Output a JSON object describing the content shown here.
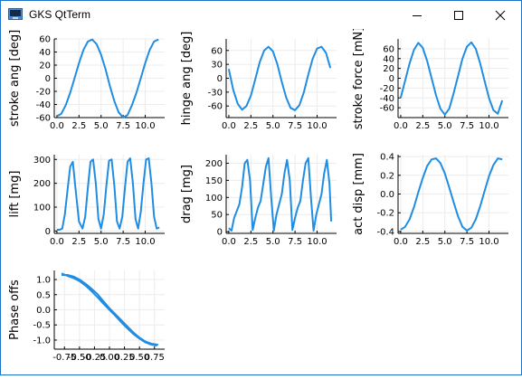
{
  "window": {
    "title": "GKS QtTerm",
    "controls": {
      "minimize_icon": "minimize-icon",
      "maximize_icon": "maximize-icon",
      "close_icon": "close-icon"
    }
  },
  "colors": {
    "line": "#1f8de3",
    "grid": "#ececec",
    "axis": "#000000",
    "titlebar_border": "#1c74c9"
  },
  "chart_data": [
    {
      "type": "line",
      "ylabel": "stroke ang [deg]",
      "xlim": [
        -0.3,
        12.2
      ],
      "ylim": [
        -60,
        60
      ],
      "xticks": [
        0,
        2.5,
        5,
        7.5,
        10
      ],
      "xtick_labels": [
        "0.0",
        "2.5",
        "5.0",
        "7.5",
        "10.0"
      ],
      "yticks": [
        -60,
        -40,
        -20,
        0,
        20,
        40,
        60
      ],
      "ytick_labels": [
        "-60",
        "-40",
        "-20",
        "0",
        "20",
        "40",
        "60"
      ],
      "x": [
        0,
        0.5,
        1,
        1.5,
        2,
        2.5,
        3,
        3.5,
        4,
        4.5,
        5,
        5.5,
        6,
        6.5,
        7,
        7.5,
        8,
        8.5,
        9,
        9.5,
        10,
        10.5,
        11,
        11.5
      ],
      "y": [
        -58,
        -54,
        -41,
        -22,
        0,
        23,
        43,
        56,
        59,
        52,
        36,
        14,
        -12,
        -35,
        -52,
        -60,
        -56,
        -41,
        -22,
        0,
        23,
        43,
        56,
        59
      ]
    },
    {
      "type": "line",
      "ylabel": "hinge ang [deg]",
      "xlim": [
        -0.3,
        12.2
      ],
      "ylim": [
        -85,
        85
      ],
      "xticks": [
        0,
        2.5,
        5,
        7.5,
        10
      ],
      "xtick_labels": [
        "0.0",
        "2.5",
        "5.0",
        "7.5",
        "10.0"
      ],
      "yticks": [
        -60,
        -30,
        0,
        30,
        60
      ],
      "ytick_labels": [
        "-60",
        "-30",
        "0",
        "30",
        "60"
      ],
      "x": [
        0,
        0.5,
        1,
        1.5,
        2,
        2.5,
        3,
        3.5,
        4,
        4.5,
        5,
        5.5,
        6,
        6.5,
        7,
        7.5,
        8,
        8.5,
        9,
        9.5,
        10,
        10.5,
        11,
        11.5
      ],
      "y": [
        20,
        -25,
        -55,
        -68,
        -60,
        -38,
        -2,
        35,
        60,
        68,
        58,
        30,
        -8,
        -42,
        -64,
        -69,
        -58,
        -30,
        8,
        42,
        64,
        68,
        55,
        22
      ]
    },
    {
      "type": "line",
      "ylabel": "stroke force [mN]",
      "xlim": [
        -0.3,
        12.2
      ],
      "ylim": [
        -80,
        80
      ],
      "xticks": [
        0,
        2.5,
        5,
        7.5,
        10
      ],
      "xtick_labels": [
        "0.0",
        "2.5",
        "5.0",
        "7.5",
        "10.0"
      ],
      "yticks": [
        -60,
        -40,
        -20,
        0,
        20,
        40,
        60
      ],
      "ytick_labels": [
        "-60",
        "-40",
        "-20",
        "0",
        "20",
        "40",
        "60"
      ],
      "x": [
        0,
        0.5,
        1,
        1.5,
        2,
        2.5,
        3,
        3.5,
        4,
        4.5,
        5,
        5.5,
        6,
        6.5,
        7,
        7.5,
        8,
        8.5,
        9,
        9.5,
        10,
        10.5,
        11,
        11.5
      ],
      "y": [
        -40,
        -5,
        30,
        58,
        72,
        62,
        35,
        0,
        -35,
        -62,
        -74,
        -62,
        -30,
        5,
        40,
        64,
        73,
        60,
        30,
        -5,
        -40,
        -65,
        -72,
        -45
      ]
    },
    {
      "type": "line",
      "ylabel": "lift [mg]",
      "xlim": [
        -0.3,
        12.2
      ],
      "ylim": [
        -10,
        320
      ],
      "xticks": [
        0,
        2.5,
        5,
        7.5,
        10
      ],
      "xtick_labels": [
        "0.0",
        "2.5",
        "5.0",
        "7.5",
        "10.0"
      ],
      "yticks": [
        0,
        100,
        200,
        300
      ],
      "ytick_labels": [
        "0",
        "100",
        "200",
        "300"
      ],
      "x": [
        0,
        0.3,
        0.6,
        0.9,
        1.2,
        1.5,
        1.8,
        2.1,
        2.5,
        2.9,
        3.2,
        3.5,
        3.8,
        4.1,
        4.4,
        4.7,
        5.0,
        5.3,
        5.6,
        5.9,
        6.2,
        6.5,
        6.8,
        7.1,
        7.4,
        7.7,
        8.0,
        8.3,
        8.6,
        8.9,
        9.2,
        9.5,
        9.8,
        10.1,
        10.4,
        10.7,
        11.0,
        11.3,
        11.6
      ],
      "y": [
        5,
        5,
        10,
        70,
        170,
        270,
        290,
        180,
        40,
        10,
        60,
        180,
        290,
        300,
        200,
        50,
        10,
        70,
        190,
        295,
        300,
        190,
        40,
        10,
        60,
        180,
        290,
        305,
        200,
        50,
        10,
        80,
        200,
        300,
        305,
        200,
        60,
        10,
        15
      ]
    },
    {
      "type": "line",
      "ylabel": "drag [mg]",
      "xlim": [
        -0.3,
        12.2
      ],
      "ylim": [
        -5,
        225
      ],
      "xticks": [
        0,
        2.5,
        5,
        7.5,
        10
      ],
      "xtick_labels": [
        "0.0",
        "2.5",
        "5.0",
        "7.5",
        "10.0"
      ],
      "yticks": [
        0,
        50,
        100,
        150,
        200
      ],
      "ytick_labels": [
        "0",
        "50",
        "100",
        "150",
        "200"
      ],
      "x": [
        0,
        0.3,
        0.6,
        0.9,
        1.2,
        1.5,
        1.8,
        2.1,
        2.4,
        2.7,
        3.0,
        3.3,
        3.6,
        3.9,
        4.2,
        4.5,
        4.8,
        5.1,
        5.4,
        5.7,
        6.0,
        6.3,
        6.6,
        6.9,
        7.2,
        7.5,
        7.8,
        8.1,
        8.4,
        8.7,
        9.0,
        9.3,
        9.6,
        9.9,
        10.2,
        10.5,
        10.8,
        11.1,
        11.4,
        11.6
      ],
      "y": [
        10,
        3,
        40,
        60,
        80,
        130,
        200,
        210,
        150,
        5,
        40,
        70,
        90,
        140,
        190,
        215,
        100,
        3,
        50,
        80,
        110,
        170,
        210,
        150,
        5,
        40,
        70,
        90,
        150,
        200,
        215,
        100,
        3,
        50,
        80,
        110,
        170,
        210,
        140,
        30
      ]
    },
    {
      "type": "line",
      "ylabel": "act disp [mm]",
      "xlim": [
        -0.3,
        12.2
      ],
      "ylim": [
        -0.42,
        0.42
      ],
      "xticks": [
        0,
        2.5,
        5,
        7.5,
        10
      ],
      "xtick_labels": [
        "0.0",
        "2.5",
        "5.0",
        "7.5",
        "10.0"
      ],
      "yticks": [
        -0.4,
        -0.2,
        0,
        0.2,
        0.4
      ],
      "ytick_labels": [
        "-0.4",
        "-0.2",
        "0.0",
        "0.2",
        "0.4"
      ],
      "x": [
        0,
        0.5,
        1,
        1.5,
        2,
        2.5,
        3,
        3.5,
        4,
        4.5,
        5,
        5.5,
        6,
        6.5,
        7,
        7.5,
        8,
        8.5,
        9,
        9.5,
        10,
        10.5,
        11,
        11.5
      ],
      "y": [
        -0.38,
        -0.35,
        -0.27,
        -0.14,
        0.02,
        0.17,
        0.3,
        0.37,
        0.38,
        0.33,
        0.22,
        0.07,
        -0.09,
        -0.24,
        -0.35,
        -0.39,
        -0.36,
        -0.27,
        -0.13,
        0.03,
        0.19,
        0.31,
        0.38,
        0.37
      ]
    },
    {
      "type": "line",
      "ylabel": "Phase offs",
      "xlim": [
        -0.92,
        0.92
      ],
      "ylim": [
        -1.3,
        1.3
      ],
      "xticks": [
        -0.75,
        -0.5,
        -0.25,
        0,
        0.25,
        0.5,
        0.75
      ],
      "xtick_labels": [
        "-0.75",
        "-0.50",
        "-0.25",
        "0.00",
        "0.25",
        "0.50",
        "0.75"
      ],
      "yticks": [
        -1.0,
        -0.5,
        0,
        0.5,
        1.0
      ],
      "ytick_labels": [
        "-1.0",
        "-0.5",
        "0.0",
        "0.5",
        "1.0"
      ],
      "x": [
        -0.8,
        -0.7,
        -0.6,
        -0.5,
        -0.4,
        -0.3,
        -0.2,
        -0.1,
        0,
        0.1,
        0.2,
        0.3,
        0.4,
        0.5,
        0.6,
        0.7,
        0.8,
        0.78,
        0.7,
        0.6,
        0.5,
        0.4,
        0.3,
        0.2,
        0.1,
        0,
        -0.1,
        -0.2,
        -0.3,
        -0.4,
        -0.5,
        -0.6,
        -0.7,
        -0.8
      ],
      "y": [
        1.15,
        1.15,
        1.1,
        1.0,
        0.86,
        0.7,
        0.52,
        0.28,
        0.05,
        -0.15,
        -0.35,
        -0.55,
        -0.75,
        -0.92,
        -1.05,
        -1.12,
        -1.15,
        -1.18,
        -1.15,
        -1.08,
        -0.95,
        -0.8,
        -0.62,
        -0.42,
        -0.2,
        0,
        0.2,
        0.42,
        0.62,
        0.8,
        0.95,
        1.05,
        1.12,
        1.2
      ]
    }
  ]
}
